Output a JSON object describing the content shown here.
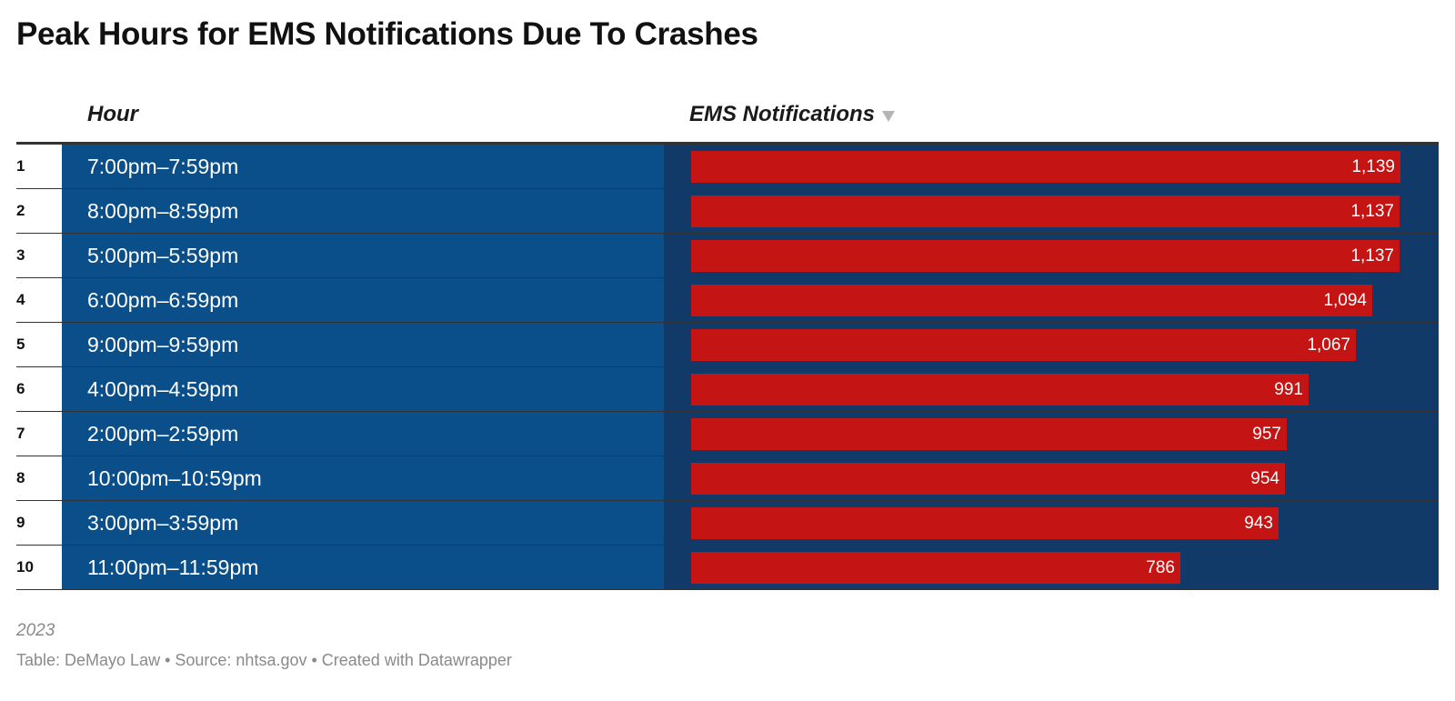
{
  "chart_data": {
    "type": "table",
    "title": "Peak Hours for EMS Notifications Due To Crashes",
    "columns": [
      "Hour",
      "EMS Notifications"
    ],
    "sort_column": "EMS Notifications",
    "sort_direction": "descending",
    "max_value": 1139,
    "rows": [
      {
        "rank": "1",
        "hour": "7:00pm–7:59pm",
        "value": 1139,
        "value_label": "1,139"
      },
      {
        "rank": "2",
        "hour": "8:00pm–8:59pm",
        "value": 1137,
        "value_label": "1,137"
      },
      {
        "rank": "3",
        "hour": "5:00pm–5:59pm",
        "value": 1137,
        "value_label": "1,137"
      },
      {
        "rank": "4",
        "hour": "6:00pm–6:59pm",
        "value": 1094,
        "value_label": "1,094"
      },
      {
        "rank": "5",
        "hour": "9:00pm–9:59pm",
        "value": 1067,
        "value_label": "1,067"
      },
      {
        "rank": "6",
        "hour": "4:00pm–4:59pm",
        "value": 991,
        "value_label": "991"
      },
      {
        "rank": "7",
        "hour": "2:00pm–2:59pm",
        "value": 957,
        "value_label": "957"
      },
      {
        "rank": "8",
        "hour": "10:00pm–10:59pm",
        "value": 954,
        "value_label": "954"
      },
      {
        "rank": "9",
        "hour": "3:00pm–3:59pm",
        "value": 943,
        "value_label": "943"
      },
      {
        "rank": "10",
        "hour": "11:00pm–11:59pm",
        "value": 786,
        "value_label": "786"
      }
    ],
    "notes": "2023",
    "footer": "Table: DeMayo Law • Source: nhtsa.gov • Created with Datawrapper"
  },
  "colors": {
    "hour_cell": "#0a4f8a",
    "ems_cell": "#123a68",
    "bar": "#c41414"
  },
  "icons": {
    "sort": "sort-descending-icon"
  }
}
